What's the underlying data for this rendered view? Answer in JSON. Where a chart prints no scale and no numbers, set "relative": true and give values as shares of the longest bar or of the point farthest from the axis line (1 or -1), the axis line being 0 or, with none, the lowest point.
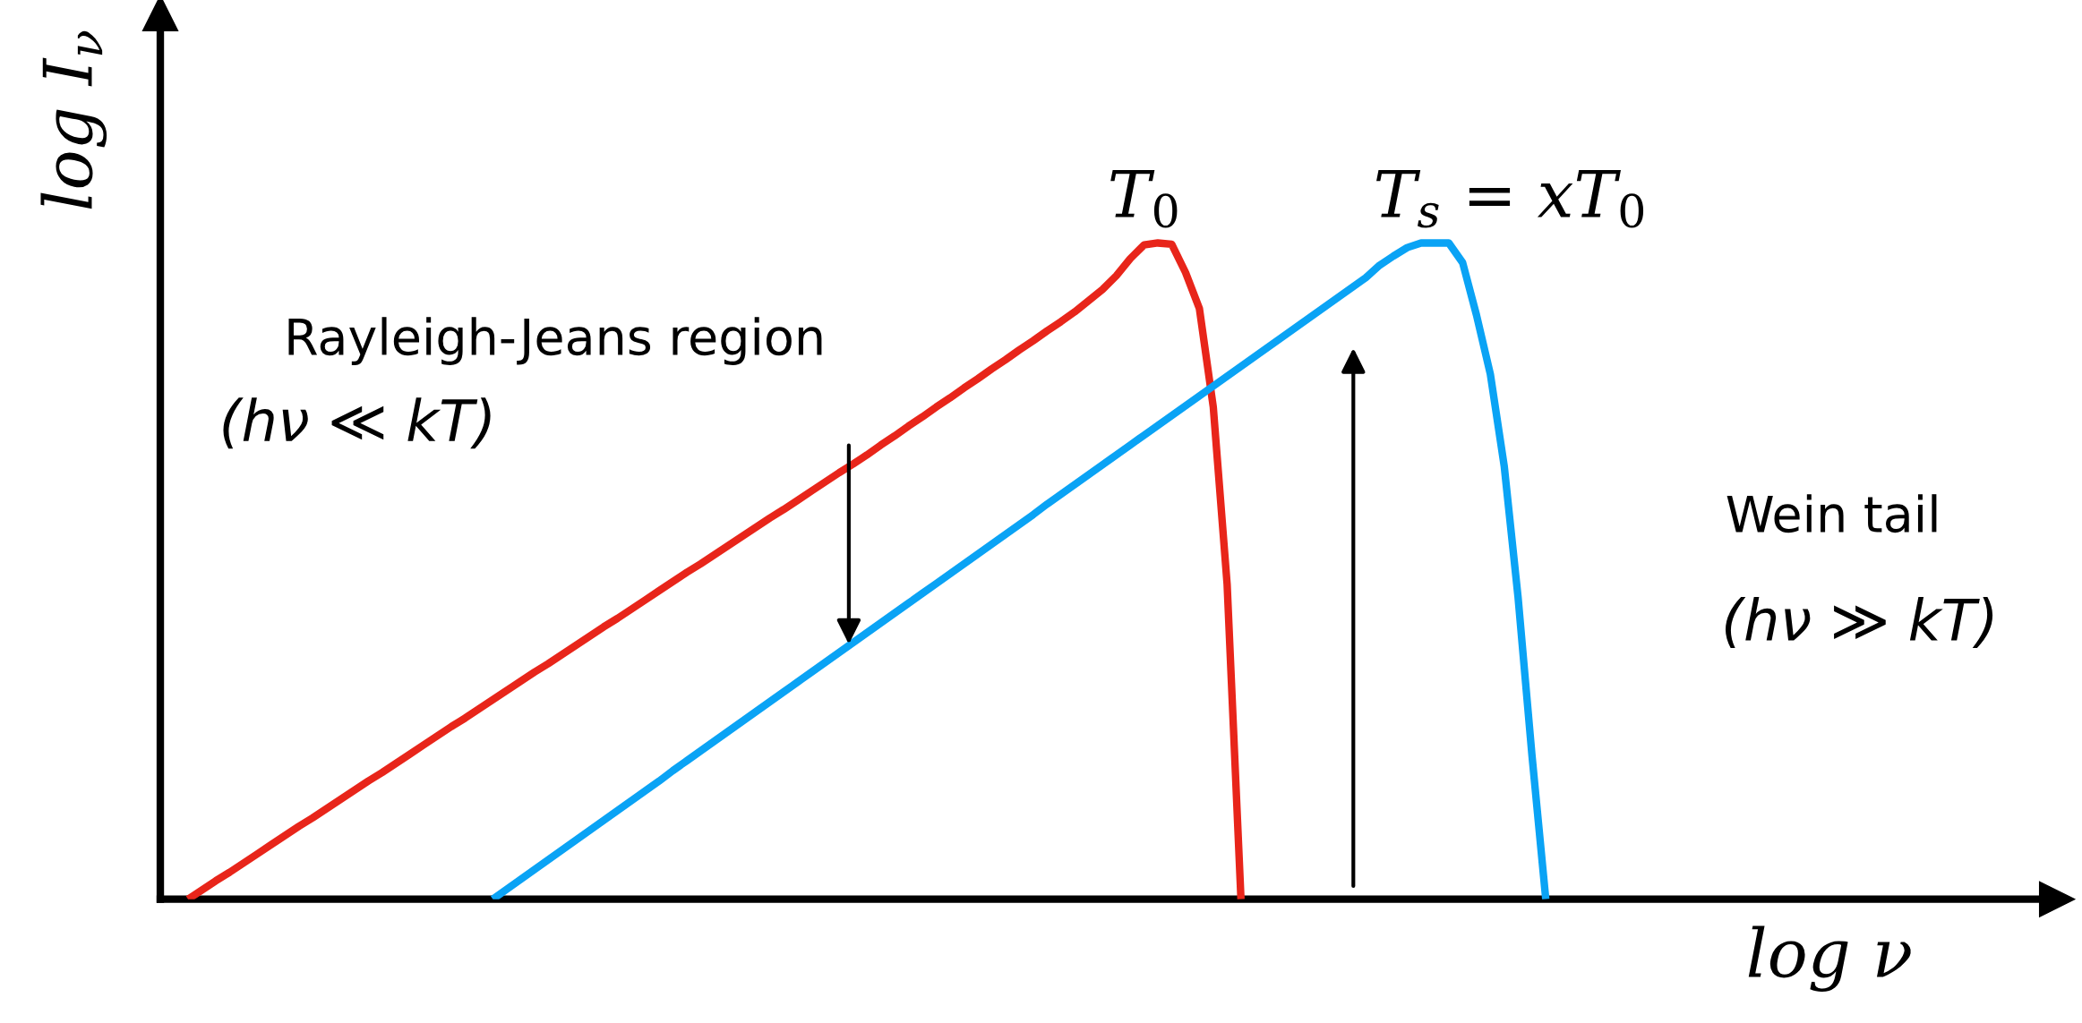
{
  "chart_data": {
    "type": "line",
    "relative": true,
    "xlabel": "log ν",
    "ylabel": "log I$_{ν}$",
    "tick_labels": false,
    "marker": "none",
    "line_style": "solid",
    "categories": [
      null,
      null,
      null,
      null,
      null,
      null,
      null,
      null,
      null,
      null,
      null,
      null,
      null,
      null,
      null,
      null,
      null,
      null,
      null,
      null,
      null,
      null,
      null,
      null,
      null,
      null,
      null,
      null,
      null,
      null,
      null,
      null,
      null,
      null,
      null,
      null,
      null,
      null,
      null,
      null,
      null,
      null,
      null,
      null,
      null,
      null,
      null,
      null,
      null,
      null,
      null,
      null,
      null,
      null,
      null,
      null,
      null,
      null,
      null,
      null,
      null,
      null,
      null,
      null,
      null,
      null,
      null,
      null,
      null,
      null,
      null,
      null,
      null,
      null,
      null,
      null,
      null,
      null,
      null,
      null,
      null,
      null,
      null,
      null,
      null,
      null,
      null,
      null,
      null,
      null,
      null,
      null,
      null,
      null,
      null,
      null,
      null,
      null,
      null,
      null,
      null
    ],
    "series": [
      {
        "color": "#e8251a",
        "values": [
          null,
          null,
          0,
          0.014,
          0.028,
          0.041,
          0.055,
          0.069,
          0.083,
          0.097,
          0.111,
          0.124,
          0.138,
          0.152,
          0.166,
          0.18,
          0.193,
          0.207,
          0.221,
          0.235,
          0.249,
          0.263,
          0.276,
          0.29,
          0.304,
          0.318,
          0.332,
          0.346,
          0.359,
          0.373,
          0.387,
          0.401,
          0.415,
          0.428,
          0.442,
          0.456,
          0.47,
          0.484,
          0.498,
          0.511,
          0.525,
          0.539,
          0.553,
          0.567,
          0.581,
          0.594,
          0.608,
          0.622,
          0.636,
          0.65,
          0.663,
          0.677,
          0.692,
          0.706,
          0.721,
          0.735,
          0.75,
          0.764,
          0.779,
          0.793,
          0.808,
          0.822,
          0.837,
          0.851,
          0.866,
          0.88,
          0.895,
          0.912,
          0.929,
          0.95,
          0.976,
          0.997,
          1.0,
          0.998,
          0.955,
          0.9,
          0.75,
          0.48,
          0,
          null,
          null,
          null,
          null,
          null,
          null,
          null,
          null,
          null,
          null,
          null,
          null,
          null,
          null,
          null,
          null,
          null,
          null,
          null,
          null,
          null,
          null
        ]
      },
      {
        "color": "#0aa3f5",
        "values": [
          null,
          null,
          null,
          null,
          null,
          null,
          null,
          null,
          null,
          null,
          null,
          null,
          null,
          null,
          null,
          null,
          null,
          null,
          null,
          null,
          null,
          null,
          null,
          null,
          0,
          0.015,
          0.03,
          0.045,
          0.06,
          0.075,
          0.09,
          0.105,
          0.12,
          0.135,
          0.15,
          0.165,
          0.18,
          0.196,
          0.211,
          0.226,
          0.241,
          0.256,
          0.271,
          0.286,
          0.301,
          0.316,
          0.331,
          0.346,
          0.361,
          0.376,
          0.391,
          0.406,
          0.421,
          0.436,
          0.451,
          0.466,
          0.481,
          0.496,
          0.511,
          0.526,
          0.541,
          0.556,
          0.571,
          0.586,
          0.602,
          0.617,
          0.632,
          0.647,
          0.662,
          0.677,
          0.692,
          0.707,
          0.722,
          0.737,
          0.752,
          0.767,
          0.782,
          0.797,
          0.812,
          0.827,
          0.842,
          0.857,
          0.872,
          0.887,
          0.902,
          0.917,
          0.932,
          0.947,
          0.966,
          0.98,
          0.993,
          1.0,
          1.0,
          1.0,
          0.97,
          0.89,
          0.8,
          0.66,
          0.46,
          0.22,
          0
        ]
      }
    ],
    "annotations": [
      "T$_{0}$",
      "T$_{s}$ = xT$_{0}$",
      "Rayleigh-Jeans region",
      "(hν ≪ kT)",
      "Wein tail",
      "(hν ≫ kT)"
    ]
  }
}
